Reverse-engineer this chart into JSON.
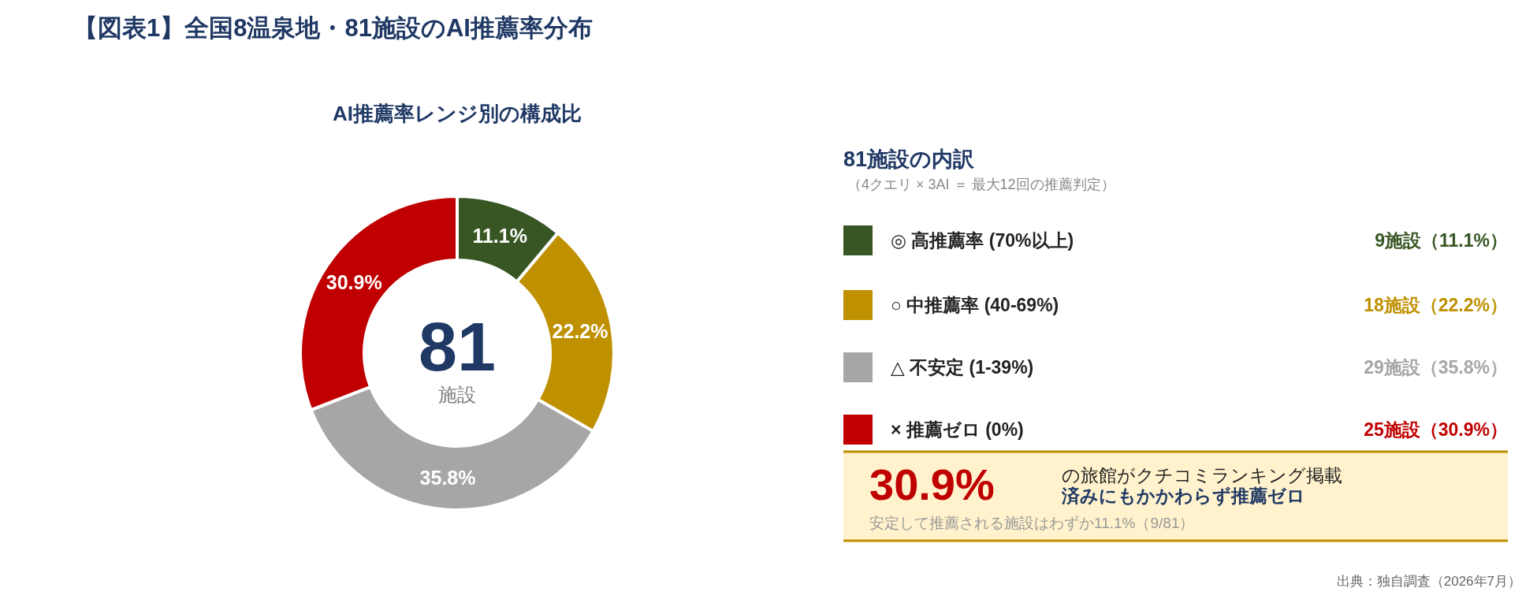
{
  "chart_data": [
    {
      "type": "donut",
      "title": "【図表1】全国8温泉地・81施設のAI推薦率分布",
      "subtitle": "AI推薦率レンジ別の構成比",
      "categories": [
        "◎ 高推薦率 (70%以上)",
        "○ 中推薦率 (40-69%)",
        "△ 不安定 (1-39%)",
        "× 推薦ゼロ (0%)"
      ],
      "values": [
        11.1,
        22.2,
        35.8,
        30.9
      ],
      "colors": [
        "#375623",
        "#bf9000",
        "#a6a6a6",
        "#c00000"
      ],
      "value_labels": [
        "11.1%",
        "22.2%",
        "35.8%",
        "30.9%"
      ],
      "legend": "right",
      "annotations": [
        "81",
        "施設"
      ]
    },
    {
      "type": "other",
      "title": "81施設の内訳",
      "subtitle": "（4クエリ × 3AI ＝ 最大12回の推薦判定）",
      "annotations": [
        "9施設（11.1%）",
        "18施設（22.2%）",
        "29施設（35.8%）",
        "25施設（30.9%）",
        "30.9%",
        "の旅館がクチコミランキング掲載",
        "済みにもかかわらず推薦ゼロ",
        "安定して推薦される施設はわずか11.1%（9/81）",
        "出典：独自調査（2026年7月）"
      ]
    }
  ]
}
